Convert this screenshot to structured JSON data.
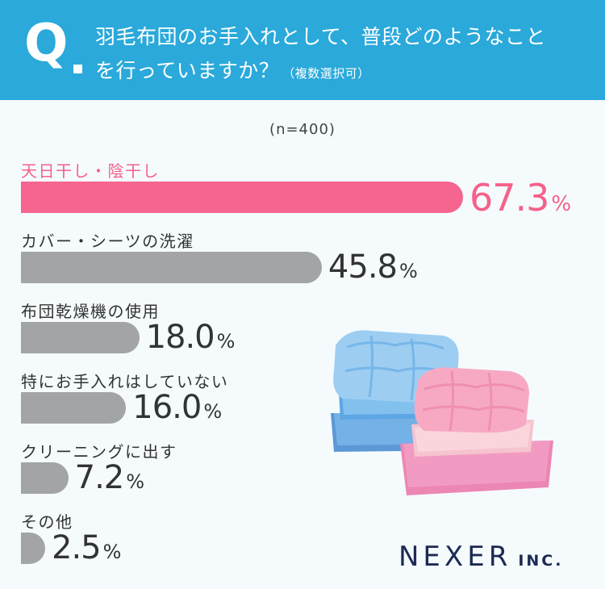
{
  "header": {
    "q_mark": "Q",
    "question_line1": "羽毛布団のお手入れとして、普段どのようなこと",
    "question_line2": "を行っていますか？",
    "question_note": "（複数選択可）"
  },
  "sample": "(n=400)",
  "unit": "%",
  "logo": {
    "name": "NEXER",
    "suffix": "INC."
  },
  "colors": {
    "header": "#2aa9da",
    "highlight": "#f56590",
    "bar": "#a2a4a7"
  },
  "illustration": "folded-futons-blue-and-pink",
  "chart_data": {
    "type": "bar",
    "orientation": "horizontal",
    "categories": [
      "天日干し・陰干し",
      "カバー・シーツの洗濯",
      "布団乾燥機の使用",
      "特にお手入れはしていない",
      "クリーニングに出す",
      "その他"
    ],
    "values": [
      67.3,
      45.8,
      18.0,
      16.0,
      7.2,
      2.5
    ],
    "value_labels": [
      "67.3",
      "45.8",
      "18.0",
      "16.0",
      "7.2",
      "2.5"
    ],
    "highlight_index": 0,
    "xlim": [
      0,
      100
    ],
    "grid": false,
    "legend": "none"
  }
}
